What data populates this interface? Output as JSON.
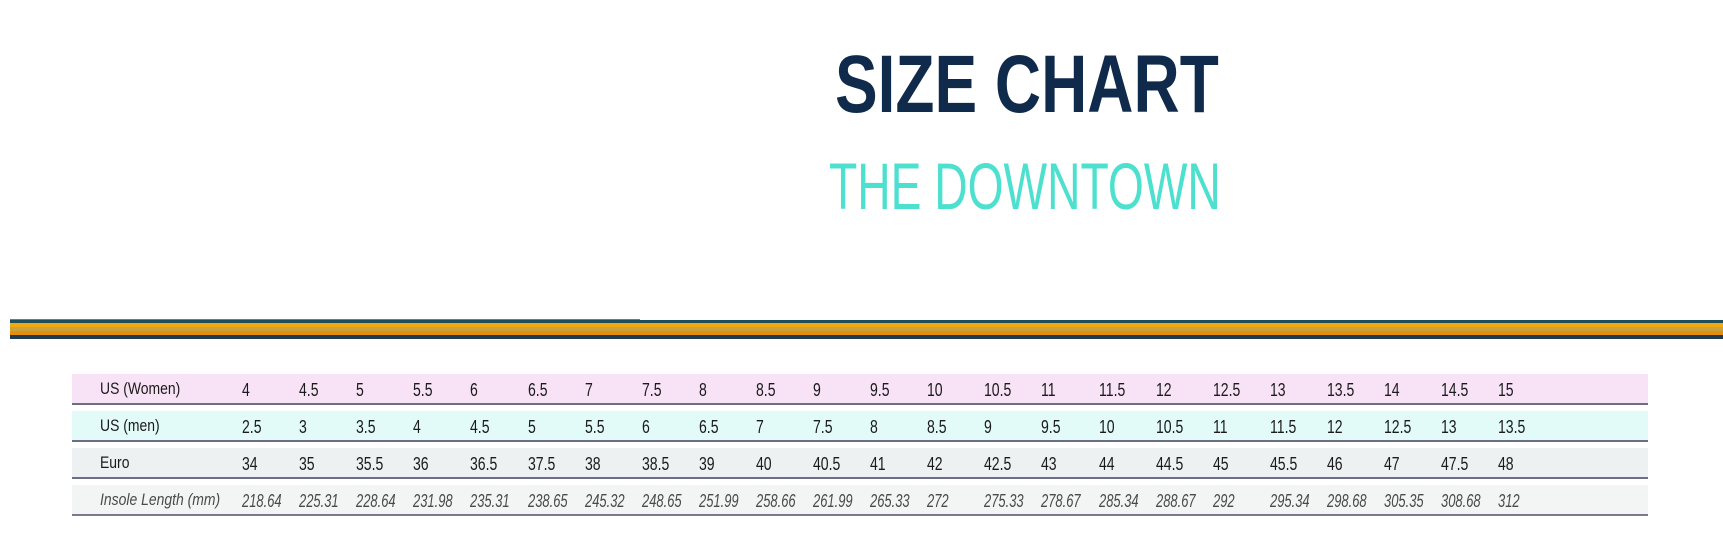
{
  "header": {
    "title": "SIZE CHART",
    "subtitle": "THE DOWNTOWN"
  },
  "colors": {
    "title": "#102a4c",
    "subtitle": "#4ee0cf",
    "stripe_dark": "#1f4e5a",
    "stripe_gold": "#f1a90f",
    "stripe_orange": "#e58e0e",
    "row_women_bg": "#f8e2f6",
    "row_men_bg": "#e3fbf8",
    "row_euro_bg": "#eef1f1"
  },
  "table": {
    "rows": [
      {
        "label": "US (Women)",
        "values": [
          "4",
          "4.5",
          "5",
          "5.5",
          "6",
          "6.5",
          "7",
          "7.5",
          "8",
          "8.5",
          "9",
          "9.5",
          "10",
          "10.5",
          "11",
          "11.5",
          "12",
          "12.5",
          "13",
          "13.5",
          "14",
          "14.5",
          "15"
        ]
      },
      {
        "label": "US (men)",
        "values": [
          "2.5",
          "3",
          "3.5",
          "4",
          "4.5",
          "5",
          "5.5",
          "6",
          "6.5",
          "7",
          "7.5",
          "8",
          "8.5",
          "9",
          "9.5",
          "10",
          "10.5",
          "11",
          "11.5",
          "12",
          "12.5",
          "13",
          "13.5"
        ]
      },
      {
        "label": "Euro",
        "values": [
          "34",
          "35",
          "35.5",
          "36",
          "36.5",
          "37.5",
          "38",
          "38.5",
          "39",
          "40",
          "40.5",
          "41",
          "42",
          "42.5",
          "43",
          "44",
          "44.5",
          "45",
          "45.5",
          "46",
          "47",
          "47.5",
          "48"
        ]
      },
      {
        "label": "Insole Length (mm)",
        "values": [
          "218.64",
          "225.31",
          "228.64",
          "231.98",
          "235.31",
          "238.65",
          "245.32",
          "248.65",
          "251.99",
          "258.66",
          "261.99",
          "265.33",
          "272",
          "275.33",
          "278.67",
          "285.34",
          "288.67",
          "292",
          "295.34",
          "298.68",
          "305.35",
          "308.68",
          "312"
        ]
      }
    ]
  }
}
